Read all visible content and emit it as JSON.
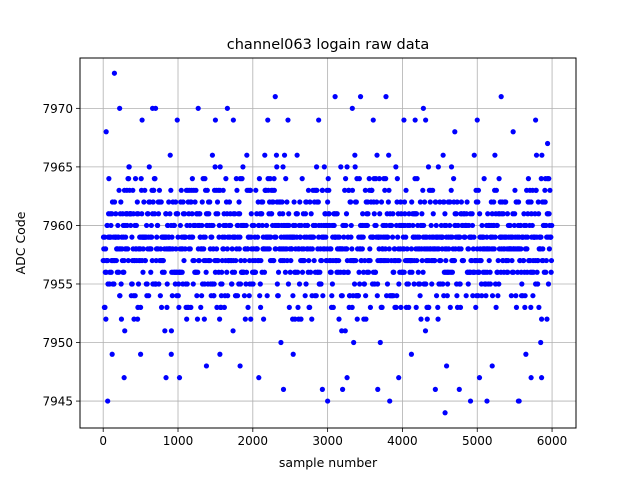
{
  "chart_data": {
    "type": "scatter",
    "title": "channel063 logain raw data",
    "xlabel": "sample number",
    "ylabel": "ADC Code",
    "xlim": [
      -310,
      6320
    ],
    "ylim": [
      7942.7,
      7974.3
    ],
    "xticks": [
      0,
      1000,
      2000,
      3000,
      4000,
      5000,
      6000
    ],
    "yticks": [
      7945,
      7950,
      7955,
      7960,
      7965,
      7970
    ],
    "grid": true,
    "marker_color": "#0000ff",
    "series": [
      {
        "n_samples": 6000,
        "dense_band": [
          7950,
          7966
        ],
        "outliers": [
          [
            150,
            7973
          ],
          [
            220,
            7970
          ],
          [
            660,
            7970
          ],
          [
            700,
            7970
          ],
          [
            1270,
            7970
          ],
          [
            1660,
            7970
          ],
          [
            2300,
            7971
          ],
          [
            3100,
            7971
          ],
          [
            3330,
            7970
          ],
          [
            3440,
            7971
          ],
          [
            3780,
            7971
          ],
          [
            4280,
            7970
          ],
          [
            5320,
            7971
          ],
          [
            5000,
            7969
          ],
          [
            5780,
            7969
          ],
          [
            40,
            7968
          ],
          [
            520,
            7969
          ],
          [
            990,
            7969
          ],
          [
            1500,
            7969
          ],
          [
            1740,
            7969
          ],
          [
            2200,
            7969
          ],
          [
            2470,
            7969
          ],
          [
            2880,
            7969
          ],
          [
            3610,
            7969
          ],
          [
            4020,
            7969
          ],
          [
            4170,
            7969
          ],
          [
            4310,
            7969
          ],
          [
            4700,
            7968
          ],
          [
            5480,
            7968
          ],
          [
            5940,
            7967
          ],
          [
            60,
            7945
          ],
          [
            3000,
            7945
          ],
          [
            3830,
            7945
          ],
          [
            4570,
            7944
          ],
          [
            5130,
            7945
          ],
          [
            5550,
            7945
          ],
          [
            5560,
            7945
          ],
          [
            4910,
            7945
          ],
          [
            280,
            7947
          ],
          [
            840,
            7947
          ],
          [
            1020,
            7947
          ],
          [
            2080,
            7947
          ],
          [
            2410,
            7946
          ],
          [
            2930,
            7946
          ],
          [
            3200,
            7946
          ],
          [
            3670,
            7946
          ],
          [
            4440,
            7946
          ],
          [
            4760,
            7946
          ],
          [
            5030,
            7947
          ],
          [
            5720,
            7947
          ],
          [
            5860,
            7947
          ],
          [
            1380,
            7948
          ],
          [
            1830,
            7948
          ],
          [
            3260,
            7947
          ],
          [
            3950,
            7947
          ],
          [
            4590,
            7948
          ],
          [
            5200,
            7948
          ],
          [
            120,
            7949
          ],
          [
            500,
            7949
          ],
          [
            910,
            7949
          ],
          [
            1560,
            7949
          ],
          [
            2540,
            7949
          ],
          [
            4120,
            7949
          ],
          [
            5650,
            7949
          ]
        ]
      }
    ]
  }
}
